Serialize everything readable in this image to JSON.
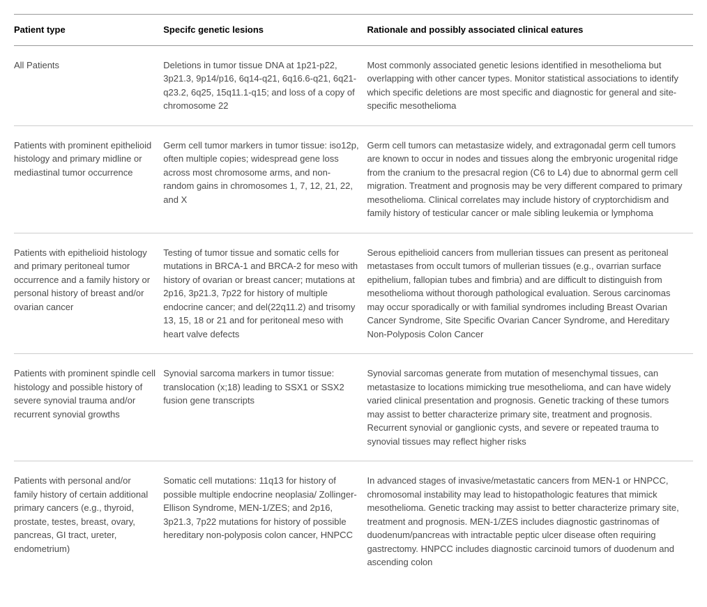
{
  "table": {
    "headers": {
      "col1": "Patient type",
      "col2": "Specifc genetic lesions",
      "col3": "Rationale and possibly associated clinical eatures"
    },
    "rows": [
      {
        "patient_type": "All Patients",
        "lesions": "Deletions in tumor tissue DNA at 1p21-p22, 3p21.3, 9p14/p16, 6q14-q21, 6q16.6-q21, 6q21-q23.2, 6q25, 15q11.1-q15; and loss of a copy of chromosome 22",
        "rationale": "Most commonly associated genetic lesions identified in mesothelioma but overlapping with other cancer types. Monitor statistical associations to identify which specific deletions are most specific and diagnostic for general and site-specific mesothelioma"
      },
      {
        "patient_type": "Patients with prominent epithelioid histology and primary midline or mediastinal tumor occurrence",
        "lesions": "Germ cell tumor markers in tumor tissue: iso12p, often multiple copies; widespread gene loss across most chromosome arms, and non-random gains in chromosomes 1, 7, 12, 21, 22, and X",
        "rationale": "Germ cell tumors can metastasize widely, and extragonadal germ cell tumors are known to occur in nodes and tissues along the embryonic urogenital ridge from the cranium to the presacral region (C6 to L4) due to abnormal germ cell migration. Treatment and prognosis may be very different compared to primary mesothelioma. Clinical correlates may include history of cryptorchidism and family history of testicular cancer or male sibling leukemia or lymphoma"
      },
      {
        "patient_type": "Patients with epithelioid histology and primary peritoneal tumor occurrence and a family history or personal history of breast and/or ovarian cancer",
        "lesions": "Testing of tumor tissue and somatic cells for mutations in BRCA-1 and BRCA-2 for meso with history of ovarian or breast cancer; mutations at 2p16, 3p21.3, 7p22 for history of multiple endocrine cancer; and del(22q11.2) and trisomy 13, 15, 18 or 21 and for peritoneal meso with heart valve defects",
        "rationale": "Serous epithelioid cancers from mullerian tissues can present as peritoneal metastases from occult tumors of mullerian tissues (e.g., ovarrian surface epithelium, fallopian tubes and fimbria) and are difficult to distinguish from mesothelioma without thorough pathological evaluation. Serous carcinomas may occur sporadically or with familial syndromes including Breast Ovarian Cancer Syndrome, Site Specific Ovarian Cancer Syndrome, and Hereditary Non-Polyposis Colon Cancer"
      },
      {
        "patient_type": "Patients with prominent spindle cell histology and possible history of severe synovial trauma and/or recurrent synovial growths",
        "lesions": "Synovial sarcoma markers in tumor tissue: translocation (x;18) leading to SSX1 or SSX2 fusion gene transcripts",
        "rationale": "Synovial sarcomas generate from mutation of mesenchymal tissues, can metastasize to locations mimicking true mesothelioma, and can have widely varied clinical presentation and prognosis. Genetic tracking of these tumors may assist to better characterize primary site, treatment and prognosis. Recurrent synovial or ganglionic cysts, and severe or repeated trauma to synovial tissues may reflect higher risks"
      },
      {
        "patient_type": "Patients with personal and/or family history of certain additional primary cancers (e.g., thyroid, prostate, testes, breast, ovary, pancreas, GI tract, ureter, endometrium)",
        "lesions": "Somatic cell mutations: 11q13 for history of possible multiple endocrine neoplasia/ Zollinger-Ellison Syndrome, MEN-1/ZES; and 2p16, 3p21.3, 7p22 mutations for history of possible hereditary non-polyposis colon cancer, HNPCC",
        "rationale": "In advanced stages of invasive/metastatic cancers from MEN-1 or HNPCC, chromosomal instability may lead to histopathologic features that mimick mesothelioma. Genetic tracking may assist to better characterize primary site, treatment and prognosis. MEN-1/ZES includes diagnostic gastrinomas of duodenum/pancreas with intractable peptic ulcer disease often requiring gastrectomy. HNPCC includes diagnostic carcinoid tumors of duodenum and ascending colon"
      }
    ]
  }
}
